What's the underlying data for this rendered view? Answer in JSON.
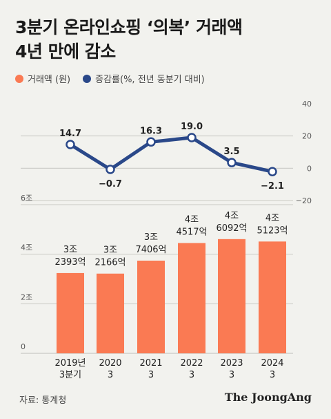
{
  "title_line1": "3분기 온라인쇼핑 ‘의복’ 거래액",
  "title_line2": "4년 만에 감소",
  "legend": {
    "bar": "거래액 (원)",
    "line": "증감률(%, 전년 동분기 대비)"
  },
  "colors": {
    "bar": "#fa7a53",
    "line": "#2a4889",
    "grid": "#c9c9c4"
  },
  "source": "자료: 통계청",
  "brand": "The JoongAng",
  "chart_data": [
    {
      "type": "line",
      "name": "증감률(%, 전년 동분기 대비)",
      "categories": [
        "2019년 3분기",
        "2020 3",
        "2021 3",
        "2022 3",
        "2023 3",
        "2024 3"
      ],
      "values": [
        14.7,
        -0.7,
        16.3,
        19.0,
        3.5,
        -2.1
      ],
      "value_labels": [
        "14.7",
        "−0.7",
        "16.3",
        "19.0",
        "3.5",
        "−2.1"
      ],
      "y_ticks": [
        "40",
        "20",
        "0",
        "−20"
      ],
      "ylim": [
        -20,
        40
      ]
    },
    {
      "type": "bar",
      "name": "거래액 (원)",
      "categories_line1": [
        "2019년",
        "2020",
        "2021",
        "2022",
        "2023",
        "2024"
      ],
      "categories_line2": [
        "3분기",
        "3",
        "3",
        "3",
        "3",
        "3"
      ],
      "values": [
        3.2393,
        3.2166,
        3.7406,
        4.4517,
        4.6092,
        4.5123
      ],
      "label_line1": [
        "3조",
        "3조",
        "3조",
        "4조",
        "4조",
        "4조"
      ],
      "label_line2": [
        "2393억",
        "2166억",
        "7406억",
        "4517억",
        "6092억",
        "5123억"
      ],
      "y_ticks": [
        "6조",
        "4조",
        "2조",
        "0"
      ],
      "ylim": [
        0,
        6
      ]
    }
  ]
}
